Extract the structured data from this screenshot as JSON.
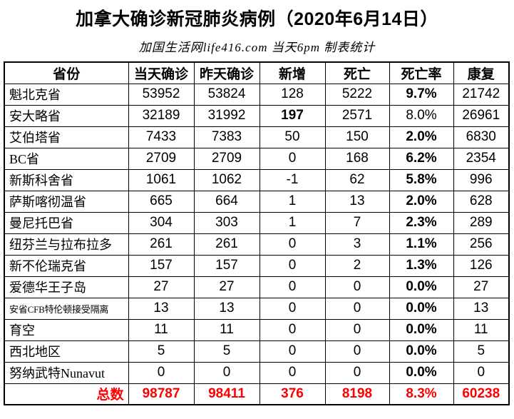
{
  "title": "加拿大确诊新冠肺炎病例（2020年6月14日）",
  "subtitle": "加国生活网life416.com 当天6pm 制表统计",
  "colors": {
    "highlight_red": "#FF0000",
    "text_black": "#000000",
    "border_black": "#000000",
    "background": "#FFFFFF"
  },
  "chart_data": {
    "type": "table",
    "title": "加拿大确诊新冠肺炎病例（2020年6月14日）",
    "subtitle": "加国生活网life416.com 当天6pm 制表统计",
    "columns": [
      "省份",
      "当天确诊",
      "昨天确诊",
      "新增",
      "死亡",
      "死亡率",
      "康复"
    ],
    "rows": [
      {
        "province": "魁北克省",
        "values": [
          "53952",
          "53824",
          "128",
          "5222",
          "9.7%",
          "21742"
        ],
        "new_red": false,
        "rate_red": true,
        "rate_bold": true,
        "small_name": false
      },
      {
        "province": "安大略省",
        "values": [
          "32189",
          "31992",
          "197",
          "2571",
          "8.0%",
          "26961"
        ],
        "new_red": true,
        "rate_red": false,
        "rate_bold": false,
        "small_name": false
      },
      {
        "province": "艾伯塔省",
        "values": [
          "7433",
          "7383",
          "50",
          "150",
          "2.0%",
          "6830"
        ],
        "new_red": false,
        "rate_red": false,
        "rate_bold": true,
        "small_name": false
      },
      {
        "province": "BC省",
        "values": [
          "2709",
          "2709",
          "0",
          "168",
          "6.2%",
          "2354"
        ],
        "new_red": false,
        "rate_red": false,
        "rate_bold": true,
        "small_name": false
      },
      {
        "province": "新斯科舍省",
        "values": [
          "1061",
          "1062",
          "-1",
          "62",
          "5.8%",
          "996"
        ],
        "new_red": false,
        "rate_red": false,
        "rate_bold": true,
        "small_name": false
      },
      {
        "province": "萨斯喀彻温省",
        "values": [
          "665",
          "664",
          "1",
          "13",
          "2.0%",
          "628"
        ],
        "new_red": false,
        "rate_red": false,
        "rate_bold": true,
        "small_name": false
      },
      {
        "province": "曼尼托巴省",
        "values": [
          "304",
          "303",
          "1",
          "7",
          "2.3%",
          "289"
        ],
        "new_red": false,
        "rate_red": false,
        "rate_bold": true,
        "small_name": false
      },
      {
        "province": "纽芬兰与拉布拉多",
        "values": [
          "261",
          "261",
          "0",
          "3",
          "1.1%",
          "256"
        ],
        "new_red": false,
        "rate_red": false,
        "rate_bold": true,
        "small_name": false
      },
      {
        "province": "新不伦瑞克省",
        "values": [
          "157",
          "157",
          "0",
          "2",
          "1.3%",
          "126"
        ],
        "new_red": false,
        "rate_red": false,
        "rate_bold": true,
        "small_name": false
      },
      {
        "province": "爱德华王子岛",
        "values": [
          "27",
          "27",
          "0",
          "0",
          "0.0%",
          "27"
        ],
        "new_red": false,
        "rate_red": false,
        "rate_bold": true,
        "small_name": false
      },
      {
        "province": "安省CFB特伦顿接受隔离",
        "values": [
          "13",
          "13",
          "0",
          "0",
          "0.0%",
          "13"
        ],
        "new_red": false,
        "rate_red": false,
        "rate_bold": true,
        "small_name": true
      },
      {
        "province": "育空",
        "values": [
          "11",
          "11",
          "0",
          "0",
          "0.0%",
          "11"
        ],
        "new_red": false,
        "rate_red": false,
        "rate_bold": true,
        "small_name": false
      },
      {
        "province": "西北地区",
        "values": [
          "5",
          "5",
          "0",
          "0",
          "0.0%",
          "5"
        ],
        "new_red": false,
        "rate_red": false,
        "rate_bold": true,
        "small_name": false
      },
      {
        "province": "努纳武特Nunavut",
        "values": [
          "0",
          "0",
          "0",
          "0",
          "0.0%",
          "0"
        ],
        "new_red": false,
        "rate_red": false,
        "rate_bold": true,
        "small_name": false
      }
    ],
    "total": {
      "label": "总数",
      "values": [
        "98787",
        "98411",
        "376",
        "8198",
        "8.3%",
        "60238"
      ]
    }
  }
}
